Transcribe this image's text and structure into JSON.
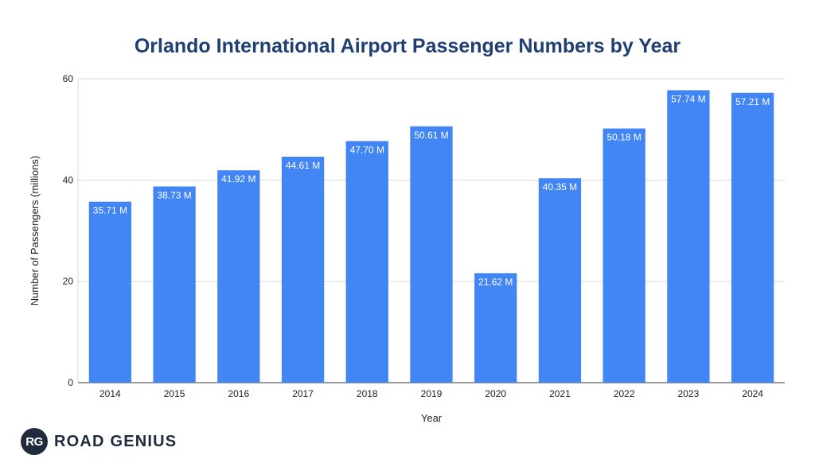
{
  "chart_data": {
    "type": "bar",
    "title": "Orlando International Airport Passenger Numbers by Year",
    "xlabel": "Year",
    "ylabel": "Number of Passengers (millions)",
    "categories": [
      "2014",
      "2015",
      "2016",
      "2017",
      "2018",
      "2019",
      "2020",
      "2021",
      "2022",
      "2023",
      "2024"
    ],
    "values": [
      35.71,
      38.73,
      41.92,
      44.61,
      47.7,
      50.61,
      21.62,
      40.35,
      50.18,
      57.74,
      57.21
    ],
    "data_labels": [
      "35.71 M",
      "38.73 M",
      "41.92 M",
      "44.61 M",
      "47.70 M",
      "50.61 M",
      "21.62 M",
      "40.35 M",
      "50.18 M",
      "57.74 M",
      "57.21 M"
    ],
    "ylim": [
      0,
      60
    ],
    "yticks": [
      0,
      20,
      40,
      60
    ],
    "grid": true,
    "bar_color": "#4285f4",
    "title_color": "#1f3f73"
  },
  "logo": {
    "badge": "RG",
    "text": "ROAD GENIUS"
  }
}
